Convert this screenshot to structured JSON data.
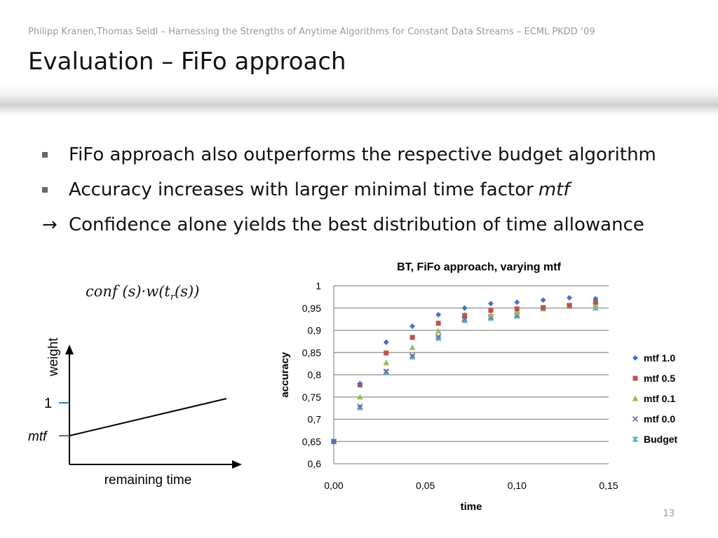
{
  "header": "Philipp Kranen,Thomas Seidl – Harnessing the Strengths of Anytime Algorithms for Constant Data Streams – ECML PKDD ‘09",
  "title": "Evaluation – FiFo approach",
  "bullets": [
    {
      "text": "FiFo approach also outperforms the respective budget algorithm"
    },
    {
      "text": "Accuracy increases with larger minimal time factor",
      "emph": "mtf"
    },
    {
      "text": "Confidence alone yields the best distribution of time allowance"
    }
  ],
  "formula": {
    "a": "conf (s)·w(t",
    "sub": "r",
    "b": "(s))"
  },
  "weight_diagram": {
    "y_label": "weight",
    "x_label": "remaining time",
    "tick_one": "1",
    "tick_mtf": "mtf"
  },
  "chart_data": {
    "type": "scatter",
    "title": "BT, FiFo approach, varying mtf",
    "xlabel": "time",
    "ylabel": "accuracy",
    "xlim": [
      0,
      0.15
    ],
    "ylim": [
      0.6,
      1
    ],
    "x_ticks": [
      "0,00",
      "0,05",
      "0,10",
      "0,15"
    ],
    "y_ticks": [
      "0,6",
      "0,65",
      "0,7",
      "0,75",
      "0,8",
      "0,85",
      "0,9",
      "0,95",
      "1"
    ],
    "grid": true,
    "legend_position": "right",
    "x": [
      0.0,
      0.0143,
      0.0286,
      0.0429,
      0.0571,
      0.0714,
      0.0857,
      0.1,
      0.1143,
      0.1286,
      0.1429
    ],
    "series": [
      {
        "name": "mtf 1.0",
        "color": "#4472c4",
        "marker": "diamond",
        "values": [
          0.65,
          0.78,
          0.873,
          0.909,
          0.935,
          0.95,
          0.96,
          0.963,
          0.968,
          0.973,
          0.971
        ]
      },
      {
        "name": "mtf 0.5",
        "color": "#c0504d",
        "marker": "square",
        "values": [
          0.65,
          0.777,
          0.849,
          0.884,
          0.916,
          0.933,
          0.945,
          0.948,
          0.951,
          0.956,
          0.963
        ]
      },
      {
        "name": "mtf 0.1",
        "color": "#9bbb59",
        "marker": "triangle",
        "values": [
          0.65,
          0.75,
          0.827,
          0.861,
          0.898,
          0.935,
          0.935,
          0.94,
          0.948,
          0.955,
          0.955
        ]
      },
      {
        "name": "mtf 0.0",
        "color": "#8064a2",
        "marker": "x",
        "values": [
          0.65,
          0.729,
          0.808,
          0.843,
          0.886,
          0.925,
          0.93,
          0.935,
          0.95,
          0.955,
          0.955
        ]
      },
      {
        "name": "Budget",
        "color": "#4bacc6",
        "marker": "star",
        "values": [
          0.65,
          0.726,
          0.806,
          0.84,
          0.882,
          0.922,
          0.927,
          0.932,
          0.95,
          0.954,
          0.95
        ]
      }
    ]
  },
  "page_number": "13"
}
